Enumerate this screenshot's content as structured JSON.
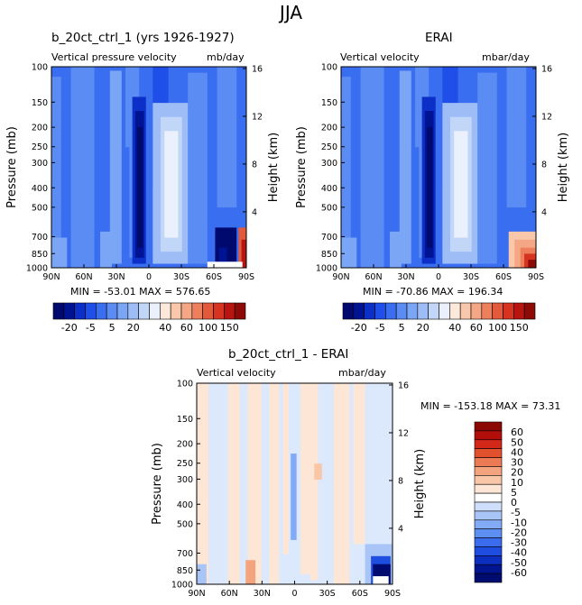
{
  "page": {
    "title": "JJA"
  },
  "colors": {
    "main_levels": [
      "#000a6e",
      "#001493",
      "#0b2fc7",
      "#1f4fe8",
      "#3a6ef0",
      "#5b8cf3",
      "#7aa6f5",
      "#9ebdf7",
      "#c2d6f8",
      "#eaf1fc",
      "#fde9dc",
      "#f9c8ab",
      "#f4a785",
      "#ed7f5c",
      "#e3593b",
      "#d63321",
      "#b81510",
      "#8c0b07"
    ],
    "diff_levels": [
      "#000b6f",
      "#00158f",
      "#0c2fbf",
      "#1f4de0",
      "#3a6ced",
      "#5d8ef2",
      "#83aaf5",
      "#a9c5f7",
      "#cfdefa",
      "#ffffff",
      "#fde6d5",
      "#f9c7a8",
      "#f3a37e",
      "#ec7a55",
      "#e2512e",
      "#d1281a",
      "#b20f0a",
      "#8b0905"
    ]
  },
  "chart_data": [
    {
      "type": "heatmap",
      "title": "b_20ct_ctrl_1 (yrs 1926-1927)",
      "subtitle_left": "Vertical pressure velocity",
      "subtitle_right": "mb/day",
      "ylabel": "Pressure (mb)",
      "ylabel_right": "Height (km)",
      "x_ticks": [
        "90N",
        "60N",
        "30N",
        "0",
        "30S",
        "60S",
        "90S"
      ],
      "y_ticks": [
        "100",
        "150",
        "200",
        "250",
        "300",
        "400",
        "500",
        "700",
        "850",
        "1000"
      ],
      "y_right_ticks": [
        "16",
        "12",
        "8",
        "4"
      ],
      "stats": "MIN = -53.01   MAX = 576.65",
      "colorbar_labels": [
        "-20",
        "-5",
        "5",
        "20",
        "40",
        "60",
        "100",
        "150"
      ]
    },
    {
      "type": "heatmap",
      "title": "ERAI",
      "subtitle_left": "Vertical velocity",
      "subtitle_right": "mbar/day",
      "ylabel": "Pressure (mb)",
      "ylabel_right": "Height (km)",
      "x_ticks": [
        "90N",
        "60N",
        "30N",
        "0",
        "30S",
        "60S",
        "90S"
      ],
      "y_ticks": [
        "100",
        "150",
        "200",
        "250",
        "300",
        "400",
        "500",
        "700",
        "850",
        "1000"
      ],
      "y_right_ticks": [
        "16",
        "12",
        "8",
        "4"
      ],
      "stats": "MIN = -70.86   MAX = 196.34",
      "colorbar_labels": [
        "-20",
        "-5",
        "5",
        "20",
        "40",
        "60",
        "100",
        "150"
      ]
    },
    {
      "type": "heatmap",
      "title": "b_20ct_ctrl_1 - ERAI",
      "subtitle_left": "Vertical velocity",
      "subtitle_right": "mbar/day",
      "ylabel": "Pressure (mb)",
      "ylabel_right": "Height (km)",
      "x_ticks": [
        "90N",
        "60N",
        "30N",
        "0",
        "30S",
        "60S",
        "90S"
      ],
      "y_ticks": [
        "100",
        "150",
        "200",
        "250",
        "300",
        "400",
        "500",
        "700",
        "850",
        "1000"
      ],
      "y_right_ticks": [
        "16",
        "12",
        "8",
        "4"
      ],
      "stats": "MIN = -153.18   MAX =   73.31",
      "colorbar_labels": [
        "60",
        "50",
        "40",
        "30",
        "20",
        "10",
        "5",
        "0",
        "-5",
        "-10",
        "-20",
        "-30",
        "-40",
        "-50",
        "-60"
      ]
    }
  ]
}
